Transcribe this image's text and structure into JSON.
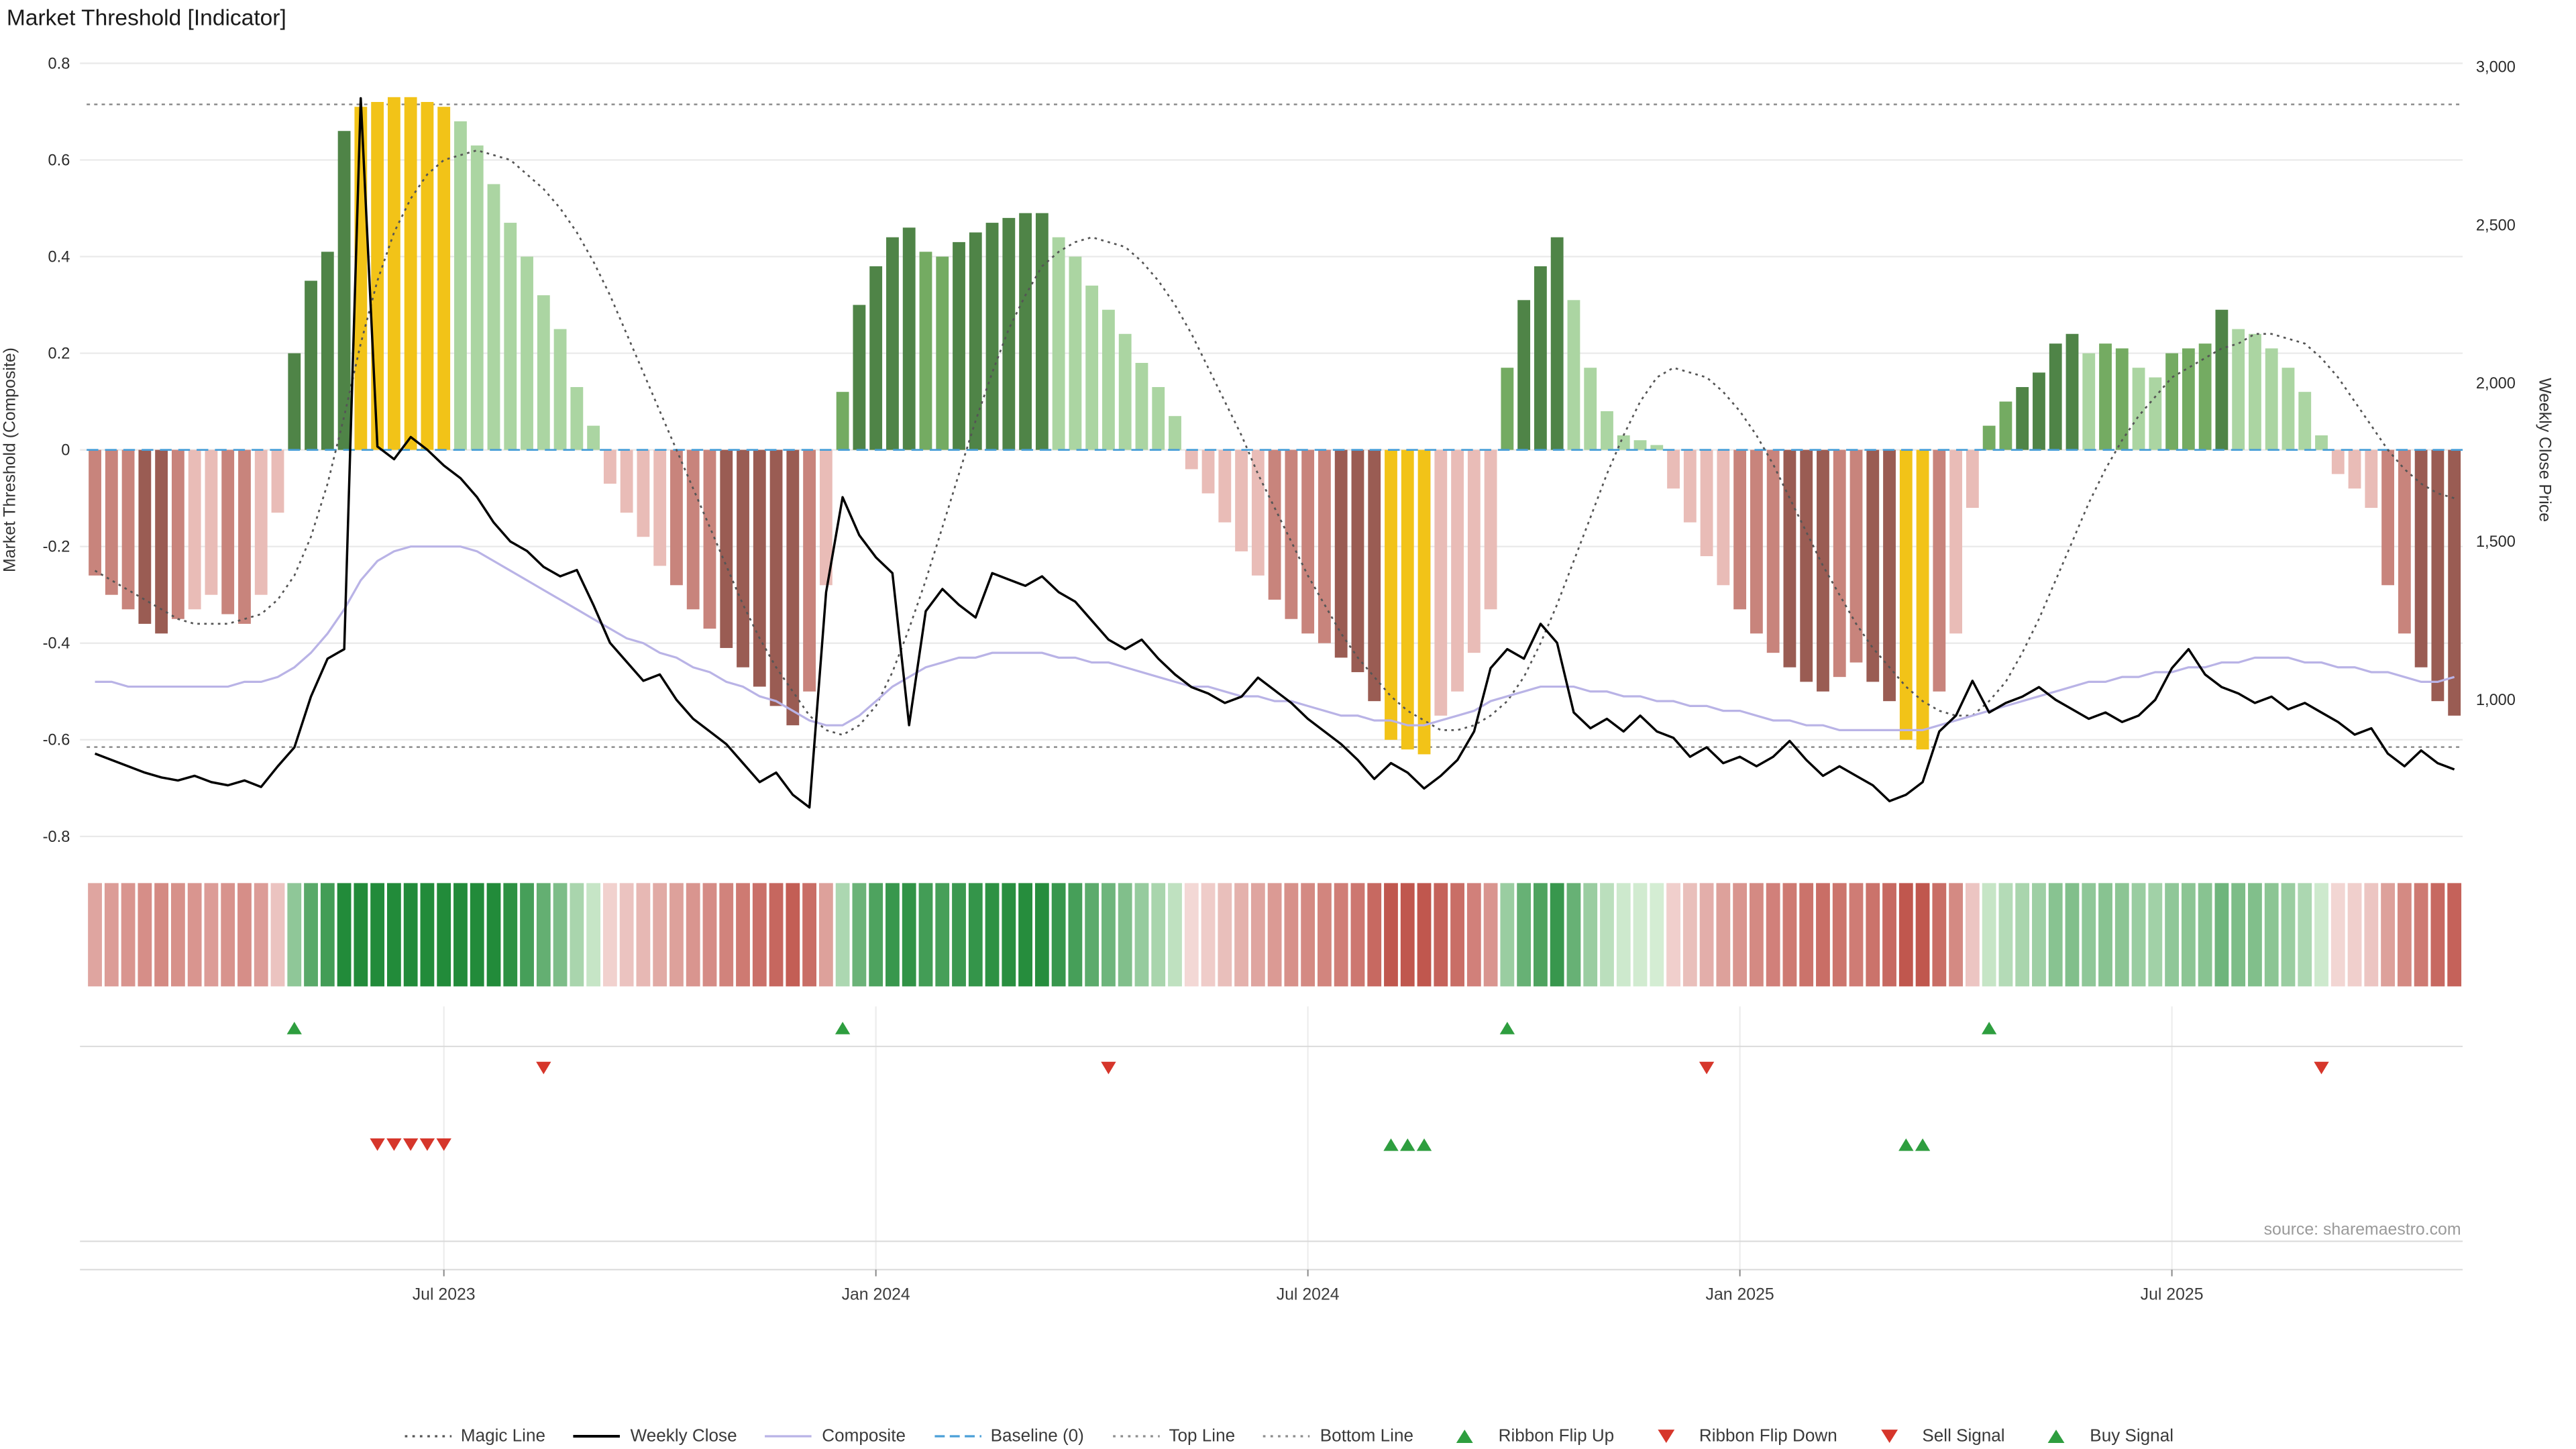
{
  "title": "Market Threshold [Indicator]",
  "source": "source: sharemaestro.com",
  "colors": {
    "bars": {
      "dg": "#4f8447",
      "mg": "#74ab62",
      "lg": "#abd5a2",
      "y": "#f2c318",
      "lr": "#e9bcb7",
      "mr": "#c8847c",
      "dr": "#9a5c53"
    },
    "lines": {
      "magic_line": "#555555",
      "weekly_close": "#000000",
      "composite": "#b9b3e6",
      "baseline": "#4a9fd8",
      "top_line": "#8c8c8c",
      "bottom_line": "#8c8c8c"
    },
    "signals": {
      "up": "#2e9e3f",
      "down": "#d6362b"
    },
    "ribbon": {
      "positive_min": "#d8efd6",
      "positive_max": "#228b3a",
      "negative_min": "#f7e1df",
      "negative_max": "#c0574e"
    }
  },
  "legend": [
    {
      "label": "Magic Line",
      "glyph": "dotted",
      "color": "#555555"
    },
    {
      "label": "Weekly Close",
      "glyph": "solid",
      "color": "#000000"
    },
    {
      "label": "Composite",
      "glyph": "solid",
      "color": "#b9b3e6"
    },
    {
      "label": "Baseline (0)",
      "glyph": "dashed",
      "color": "#4a9fd8"
    },
    {
      "label": "Top Line",
      "glyph": "dotted",
      "color": "#8c8c8c"
    },
    {
      "label": "Bottom Line",
      "glyph": "dotted",
      "color": "#8c8c8c"
    },
    {
      "label": "Ribbon Flip Up",
      "glyph": "tri-up",
      "color": "#2e9e3f"
    },
    {
      "label": "Ribbon Flip Down",
      "glyph": "tri-down",
      "color": "#d6362b"
    },
    {
      "label": "Sell Signal",
      "glyph": "tri-down",
      "color": "#d6362b"
    },
    {
      "label": "Buy Signal",
      "glyph": "tri-up",
      "color": "#2e9e3f"
    }
  ],
  "chart_data": {
    "type": "combo-bar-line",
    "x_axis": {
      "unit": "weeks",
      "tick_positions": [
        {
          "index": 21,
          "label": "Jul 2023"
        },
        {
          "index": 47,
          "label": "Jan 2024"
        },
        {
          "index": 73,
          "label": "Jul 2024"
        },
        {
          "index": 99,
          "label": "Jan 2025"
        },
        {
          "index": 125,
          "label": "Jul 2025"
        }
      ]
    },
    "left_axis": {
      "label": "Market Threshold (Composite)",
      "ticks": [
        "0.8",
        "0.6",
        "0.4",
        "0.2",
        "0",
        "-0.2",
        "-0.4",
        "-0.6",
        "-0.8"
      ],
      "range": [
        -0.9,
        0.85
      ]
    },
    "right_axis": {
      "label": "Weekly Close Price",
      "ticks": [
        {
          "value": 3000,
          "label": "3,000"
        },
        {
          "value": 2500,
          "label": "2,500"
        },
        {
          "value": 2000,
          "label": "2,000"
        },
        {
          "value": 1500,
          "label": "1,500"
        },
        {
          "value": 1000,
          "label": "1,000"
        }
      ]
    },
    "reference_lines": {
      "top_line": 0.715,
      "bottom_line": -0.615,
      "baseline": 0
    },
    "series": {
      "threshold_bars": {
        "name": "Market Threshold",
        "axis": "left",
        "values": [
          -0.26,
          -0.3,
          -0.33,
          -0.36,
          -0.38,
          -0.35,
          -0.33,
          -0.3,
          -0.34,
          -0.36,
          -0.3,
          -0.13,
          0.2,
          0.35,
          0.41,
          0.66,
          0.71,
          0.72,
          0.73,
          0.73,
          0.72,
          0.71,
          0.68,
          0.63,
          0.55,
          0.47,
          0.4,
          0.32,
          0.25,
          0.13,
          0.05,
          -0.07,
          -0.13,
          -0.18,
          -0.24,
          -0.28,
          -0.33,
          -0.37,
          -0.41,
          -0.45,
          -0.49,
          -0.53,
          -0.57,
          -0.5,
          -0.28,
          0.12,
          0.3,
          0.38,
          0.44,
          0.46,
          0.41,
          0.4,
          0.43,
          0.45,
          0.47,
          0.48,
          0.49,
          0.49,
          0.44,
          0.4,
          0.34,
          0.29,
          0.24,
          0.18,
          0.13,
          0.07,
          -0.04,
          -0.09,
          -0.15,
          -0.21,
          -0.26,
          -0.31,
          -0.35,
          -0.38,
          -0.4,
          -0.43,
          -0.46,
          -0.52,
          -0.6,
          -0.62,
          -0.63,
          -0.55,
          -0.5,
          -0.42,
          -0.33,
          0.17,
          0.31,
          0.38,
          0.44,
          0.31,
          0.17,
          0.08,
          0.03,
          0.02,
          0.01,
          -0.08,
          -0.15,
          -0.22,
          -0.28,
          -0.33,
          -0.38,
          -0.42,
          -0.45,
          -0.48,
          -0.5,
          -0.47,
          -0.44,
          -0.48,
          -0.52,
          -0.6,
          -0.62,
          -0.5,
          -0.38,
          -0.12,
          0.05,
          0.1,
          0.13,
          0.16,
          0.22,
          0.24,
          0.2,
          0.22,
          0.21,
          0.17,
          0.15,
          0.2,
          0.21,
          0.22,
          0.29,
          0.25,
          0.24,
          0.21,
          0.17,
          0.12,
          0.03,
          -0.05,
          -0.08,
          -0.12,
          -0.28,
          -0.38,
          -0.45,
          -0.52,
          -0.55
        ],
        "color_classes": [
          "mr",
          "mr",
          "mr",
          "dr",
          "dr",
          "mr",
          "lr",
          "lr",
          "mr",
          "mr",
          "lr",
          "lr",
          "dg",
          "dg",
          "dg",
          "dg",
          "y",
          "y",
          "y",
          "y",
          "y",
          "y",
          "lg",
          "lg",
          "lg",
          "lg",
          "lg",
          "lg",
          "lg",
          "lg",
          "lg",
          "lr",
          "lr",
          "lr",
          "lr",
          "mr",
          "mr",
          "mr",
          "dr",
          "dr",
          "dr",
          "dr",
          "dr",
          "mr",
          "lr",
          "mg",
          "dg",
          "dg",
          "dg",
          "dg",
          "mg",
          "mg",
          "dg",
          "dg",
          "dg",
          "dg",
          "dg",
          "dg",
          "lg",
          "lg",
          "lg",
          "lg",
          "lg",
          "lg",
          "lg",
          "lg",
          "lr",
          "lr",
          "lr",
          "lr",
          "lr",
          "mr",
          "mr",
          "mr",
          "mr",
          "dr",
          "dr",
          "dr",
          "y",
          "y",
          "y",
          "lr",
          "lr",
          "lr",
          "lr",
          "mg",
          "dg",
          "dg",
          "dg",
          "lg",
          "lg",
          "lg",
          "lg",
          "lg",
          "lg",
          "lr",
          "lr",
          "lr",
          "lr",
          "mr",
          "mr",
          "mr",
          "dr",
          "dr",
          "dr",
          "mr",
          "mr",
          "dr",
          "dr",
          "y",
          "y",
          "mr",
          "lr",
          "lr",
          "mg",
          "mg",
          "dg",
          "dg",
          "dg",
          "dg",
          "lg",
          "mg",
          "mg",
          "lg",
          "lg",
          "mg",
          "mg",
          "mg",
          "dg",
          "lg",
          "lg",
          "lg",
          "lg",
          "lg",
          "lg",
          "lr",
          "lr",
          "lr",
          "mr",
          "mr",
          "dr",
          "dr",
          "dr"
        ]
      },
      "weekly_close": {
        "name": "Weekly Close",
        "axis": "right",
        "values": [
          830,
          810,
          790,
          770,
          755,
          745,
          760,
          740,
          730,
          745,
          725,
          790,
          850,
          1010,
          1130,
          1160,
          2900,
          1800,
          1760,
          1830,
          1790,
          1740,
          1700,
          1640,
          1560,
          1500,
          1470,
          1420,
          1390,
          1410,
          1300,
          1180,
          1120,
          1060,
          1080,
          1000,
          940,
          900,
          860,
          800,
          740,
          770,
          700,
          660,
          1340,
          1640,
          1520,
          1450,
          1400,
          920,
          1280,
          1350,
          1300,
          1260,
          1400,
          1380,
          1360,
          1390,
          1340,
          1310,
          1250,
          1190,
          1160,
          1190,
          1130,
          1080,
          1040,
          1020,
          990,
          1010,
          1070,
          1030,
          990,
          940,
          900,
          860,
          810,
          750,
          800,
          770,
          720,
          760,
          810,
          900,
          1100,
          1160,
          1130,
          1240,
          1180,
          960,
          910,
          940,
          900,
          950,
          900,
          880,
          820,
          850,
          800,
          820,
          790,
          820,
          870,
          810,
          760,
          790,
          760,
          730,
          680,
          700,
          740,
          900,
          950,
          1060,
          960,
          990,
          1010,
          1040,
          1000,
          970,
          940,
          960,
          930,
          950,
          1000,
          1100,
          1160,
          1080,
          1040,
          1020,
          990,
          1010,
          970,
          990,
          960,
          930,
          890,
          910,
          830,
          790,
          840,
          800,
          780
        ]
      },
      "composite": {
        "name": "Composite",
        "axis": "left",
        "values": [
          -0.48,
          -0.48,
          -0.49,
          -0.49,
          -0.49,
          -0.49,
          -0.49,
          -0.49,
          -0.49,
          -0.48,
          -0.48,
          -0.47,
          -0.45,
          -0.42,
          -0.38,
          -0.33,
          -0.27,
          -0.23,
          -0.21,
          -0.2,
          -0.2,
          -0.2,
          -0.2,
          -0.21,
          -0.23,
          -0.25,
          -0.27,
          -0.29,
          -0.31,
          -0.33,
          -0.35,
          -0.37,
          -0.39,
          -0.4,
          -0.42,
          -0.43,
          -0.45,
          -0.46,
          -0.48,
          -0.49,
          -0.51,
          -0.52,
          -0.54,
          -0.56,
          -0.57,
          -0.57,
          -0.55,
          -0.52,
          -0.49,
          -0.47,
          -0.45,
          -0.44,
          -0.43,
          -0.43,
          -0.42,
          -0.42,
          -0.42,
          -0.42,
          -0.43,
          -0.43,
          -0.44,
          -0.44,
          -0.45,
          -0.46,
          -0.47,
          -0.48,
          -0.49,
          -0.49,
          -0.5,
          -0.51,
          -0.51,
          -0.52,
          -0.52,
          -0.53,
          -0.54,
          -0.55,
          -0.55,
          -0.56,
          -0.56,
          -0.57,
          -0.57,
          -0.56,
          -0.55,
          -0.54,
          -0.52,
          -0.51,
          -0.5,
          -0.49,
          -0.49,
          -0.49,
          -0.5,
          -0.5,
          -0.51,
          -0.51,
          -0.52,
          -0.52,
          -0.53,
          -0.53,
          -0.54,
          -0.54,
          -0.55,
          -0.56,
          -0.56,
          -0.57,
          -0.57,
          -0.58,
          -0.58,
          -0.58,
          -0.58,
          -0.58,
          -0.58,
          -0.57,
          -0.56,
          -0.55,
          -0.54,
          -0.53,
          -0.52,
          -0.51,
          -0.5,
          -0.49,
          -0.48,
          -0.48,
          -0.47,
          -0.47,
          -0.46,
          -0.46,
          -0.45,
          -0.45,
          -0.44,
          -0.44,
          -0.43,
          -0.43,
          -0.43,
          -0.44,
          -0.44,
          -0.45,
          -0.45,
          -0.46,
          -0.46,
          -0.47,
          -0.48,
          -0.48,
          -0.47
        ]
      },
      "magic_line": {
        "name": "Magic Line",
        "axis": "left",
        "values": [
          -0.25,
          -0.27,
          -0.29,
          -0.31,
          -0.33,
          -0.35,
          -0.36,
          -0.36,
          -0.36,
          -0.35,
          -0.34,
          -0.31,
          -0.26,
          -0.18,
          -0.07,
          0.07,
          0.22,
          0.35,
          0.45,
          0.52,
          0.57,
          0.6,
          0.61,
          0.62,
          0.61,
          0.6,
          0.57,
          0.54,
          0.5,
          0.45,
          0.39,
          0.32,
          0.24,
          0.16,
          0.08,
          0.0,
          -0.08,
          -0.16,
          -0.24,
          -0.32,
          -0.39,
          -0.45,
          -0.5,
          -0.55,
          -0.58,
          -0.59,
          -0.57,
          -0.53,
          -0.46,
          -0.37,
          -0.27,
          -0.16,
          -0.05,
          0.06,
          0.16,
          0.25,
          0.32,
          0.38,
          0.41,
          0.43,
          0.44,
          0.43,
          0.42,
          0.39,
          0.35,
          0.3,
          0.24,
          0.17,
          0.1,
          0.03,
          -0.05,
          -0.12,
          -0.19,
          -0.26,
          -0.32,
          -0.38,
          -0.43,
          -0.47,
          -0.51,
          -0.54,
          -0.56,
          -0.58,
          -0.58,
          -0.57,
          -0.55,
          -0.52,
          -0.47,
          -0.4,
          -0.32,
          -0.23,
          -0.14,
          -0.05,
          0.03,
          0.1,
          0.15,
          0.17,
          0.16,
          0.15,
          0.12,
          0.08,
          0.03,
          -0.03,
          -0.1,
          -0.17,
          -0.24,
          -0.3,
          -0.36,
          -0.41,
          -0.45,
          -0.49,
          -0.52,
          -0.54,
          -0.55,
          -0.55,
          -0.52,
          -0.48,
          -0.42,
          -0.35,
          -0.27,
          -0.19,
          -0.11,
          -0.04,
          0.02,
          0.07,
          0.11,
          0.15,
          0.17,
          0.19,
          0.21,
          0.22,
          0.24,
          0.24,
          0.23,
          0.22,
          0.19,
          0.15,
          0.1,
          0.05,
          0.0,
          -0.04,
          -0.07,
          -0.09,
          -0.1
        ]
      }
    },
    "signals": {
      "ribbon_flip_up": [
        12,
        45,
        85,
        114
      ],
      "ribbon_flip_down": [
        27,
        61,
        97,
        134
      ],
      "sell": [
        17,
        18,
        19,
        20,
        21
      ],
      "buy": [
        78,
        79,
        80,
        109,
        110
      ]
    }
  }
}
